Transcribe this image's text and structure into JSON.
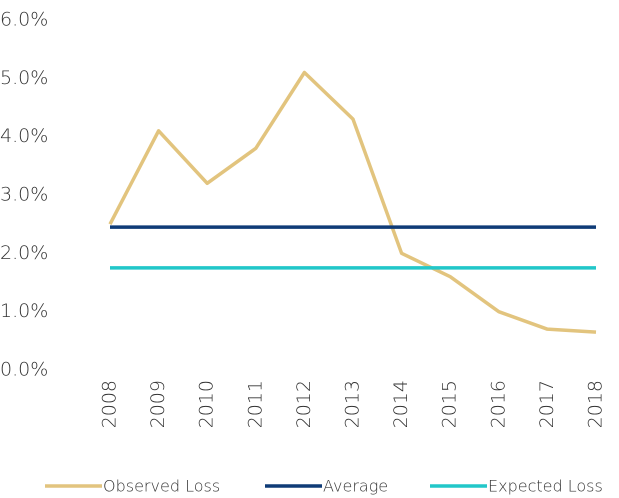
{
  "chart_data": {
    "type": "line",
    "categories": [
      "2008",
      "2009",
      "2010",
      "2011",
      "2012",
      "2013",
      "2014",
      "2015",
      "2016",
      "2017",
      "2018"
    ],
    "series": [
      {
        "name": "Observed Loss",
        "color": "#e2c47e",
        "values": [
          2.5,
          4.1,
          3.2,
          3.8,
          5.1,
          4.3,
          2.0,
          1.6,
          1.0,
          0.7,
          0.65
        ]
      },
      {
        "name": "Average",
        "color": "#0f3b77",
        "values": [
          2.45,
          2.45,
          2.45,
          2.45,
          2.45,
          2.45,
          2.45,
          2.45,
          2.45,
          2.45,
          2.45
        ]
      },
      {
        "name": "Expected Loss",
        "color": "#22c7c9",
        "values": [
          1.75,
          1.75,
          1.75,
          1.75,
          1.75,
          1.75,
          1.75,
          1.75,
          1.75,
          1.75,
          1.75
        ]
      }
    ],
    "ylim": [
      0,
      6
    ],
    "yticks": [
      {
        "value": 0,
        "label": "0.0%"
      },
      {
        "value": 1,
        "label": "1.0%"
      },
      {
        "value": 2,
        "label": "2.0%"
      },
      {
        "value": 3,
        "label": "3.0%"
      },
      {
        "value": 4,
        "label": "4.0%"
      },
      {
        "value": 5,
        "label": "5.0%"
      },
      {
        "value": 6,
        "label": "6.0%"
      }
    ],
    "grid": false
  }
}
